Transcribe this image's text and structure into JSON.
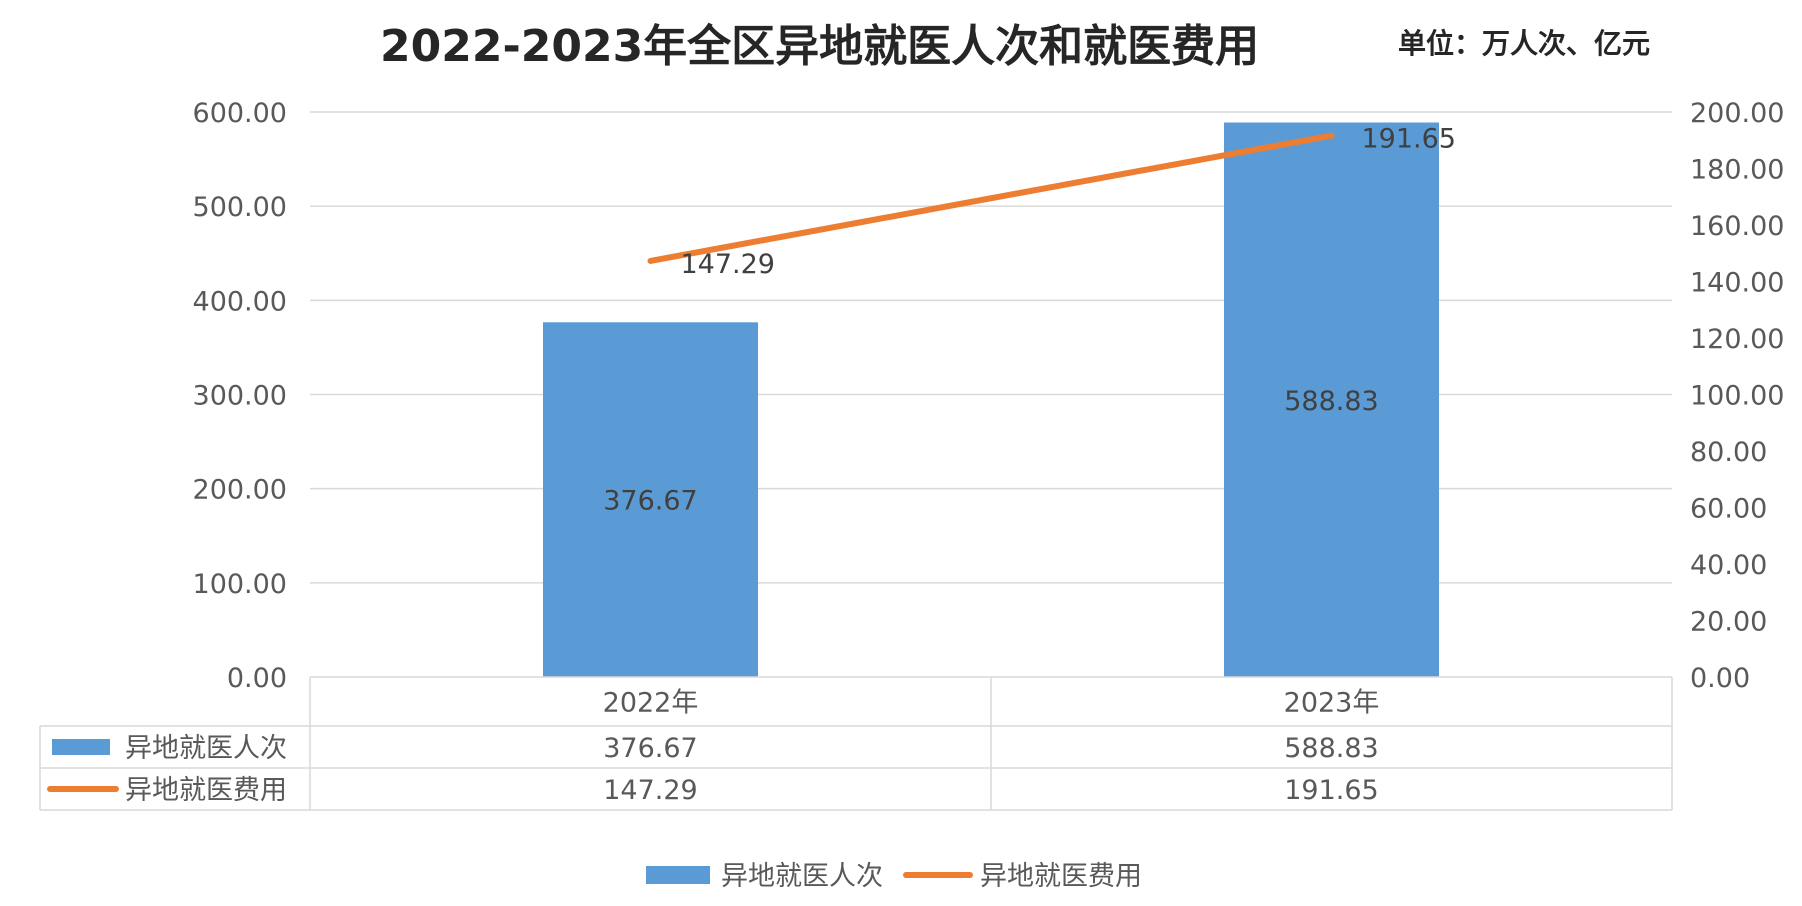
{
  "chart_data": {
    "type": "bar",
    "title": "2022-2023年全区异地就医人次和就医费用",
    "unit_note": "单位：万人次、亿元",
    "categories": [
      "2022年",
      "2023年"
    ],
    "y_left": {
      "ylim": [
        0,
        600
      ],
      "ticks": [
        "0.00",
        "100.00",
        "200.00",
        "300.00",
        "400.00",
        "500.00",
        "600.00"
      ]
    },
    "y_right": {
      "ylim": [
        0,
        200
      ],
      "ticks": [
        "0.00",
        "20.00",
        "40.00",
        "60.00",
        "80.00",
        "100.00",
        "120.00",
        "140.00",
        "160.00",
        "180.00",
        "200.00"
      ]
    },
    "series": [
      {
        "name": "异地就医人次",
        "kind": "bar",
        "axis": "left",
        "color": "#5B9BD5",
        "values": [
          376.67,
          588.83
        ],
        "labels": [
          "376.67",
          "588.83"
        ]
      },
      {
        "name": "异地就医费用",
        "kind": "line",
        "axis": "right",
        "color": "#ED7D31",
        "values": [
          147.29,
          191.65
        ],
        "labels": [
          "147.29",
          "191.65"
        ]
      }
    ],
    "grid": true,
    "data_table": true,
    "legend": "bottom"
  },
  "colors": {
    "grid": "#D9D9D9",
    "table_border": "#D9D9D9"
  }
}
